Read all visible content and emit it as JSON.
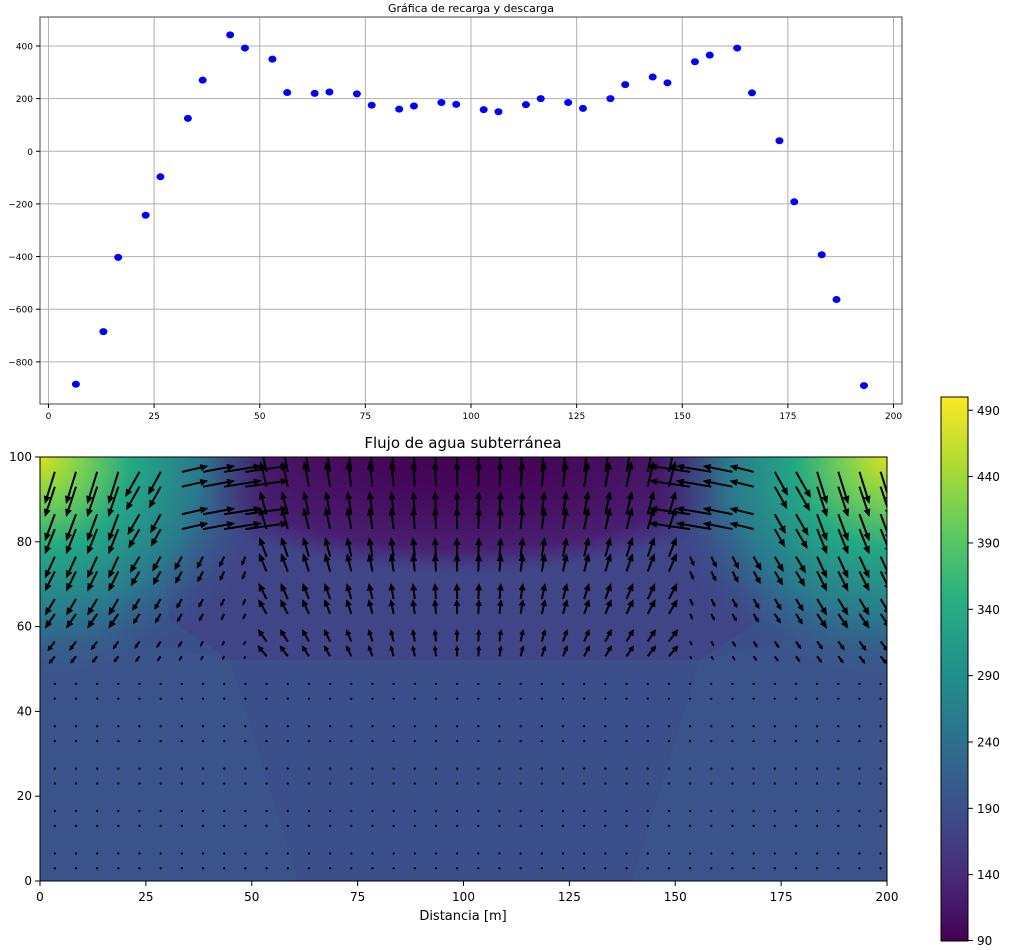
{
  "chart_data": [
    {
      "type": "scatter",
      "title": "Gráfica de recarga y descarga",
      "xlabel": "",
      "ylabel": "",
      "xlim": [
        -2,
        202
      ],
      "ylim": [
        -960,
        510
      ],
      "grid": true,
      "x_ticks": [
        0,
        25,
        50,
        75,
        100,
        125,
        150,
        175,
        200
      ],
      "x_tick_labels": [
        "0",
        "25",
        "50",
        "75",
        "100",
        "125",
        "150",
        "175",
        "200"
      ],
      "y_ticks": [
        -800,
        -600,
        -400,
        -200,
        0,
        200,
        400
      ],
      "y_tick_labels": [
        "−800",
        "−600",
        "−400",
        "−200",
        "0",
        "200",
        "400"
      ],
      "marker_color": "#0000ff",
      "points": {
        "x": [
          6.5,
          13,
          16.5,
          23,
          26.5,
          33,
          36.5,
          43,
          46.5,
          53,
          56.5,
          63,
          66.5,
          73,
          76.5,
          83,
          86.5,
          93,
          96.5,
          103,
          106.5,
          113,
          116.5,
          123,
          126.5,
          133,
          136.5,
          143,
          146.5,
          153,
          156.5,
          163,
          166.5,
          173,
          176.5,
          183,
          186.5,
          193
        ],
        "y": [
          -885,
          -685,
          -403,
          -243,
          -97,
          125,
          270,
          442,
          392,
          350,
          223,
          220,
          225,
          218,
          175,
          160,
          172,
          185,
          178,
          158,
          150,
          177,
          200,
          185,
          163,
          200,
          253,
          282,
          260,
          340,
          365,
          392,
          222,
          40,
          -192,
          -393,
          -563,
          -890
        ]
      }
    },
    {
      "type": "heatmap",
      "title": "Flujo de agua subterránea",
      "xlabel": "Distancia [m]",
      "ylabel": "",
      "xlim": [
        0,
        200
      ],
      "ylim": [
        0,
        100
      ],
      "x_ticks": [
        0,
        25,
        50,
        75,
        100,
        125,
        150,
        175,
        200
      ],
      "x_tick_labels": [
        "0",
        "25",
        "50",
        "75",
        "100",
        "125",
        "150",
        "175",
        "200"
      ],
      "y_ticks": [
        0,
        20,
        40,
        60,
        80,
        100
      ],
      "y_tick_labels": [
        "0",
        "20",
        "40",
        "60",
        "80",
        "100"
      ],
      "colormap": "viridis",
      "colorbar": {
        "range": [
          90,
          500
        ],
        "ticks": [
          90,
          140,
          190,
          240,
          290,
          340,
          390,
          440,
          490
        ],
        "tick_labels": [
          "90",
          "140",
          "190",
          "240",
          "290",
          "340",
          "390",
          "440",
          "490"
        ]
      },
      "field_description": "hydraulic head contours with flow vectors",
      "head_levels": {
        "background": 185,
        "upper_lobes": 160,
        "center_low": 95,
        "corner_high": 490
      }
    }
  ]
}
